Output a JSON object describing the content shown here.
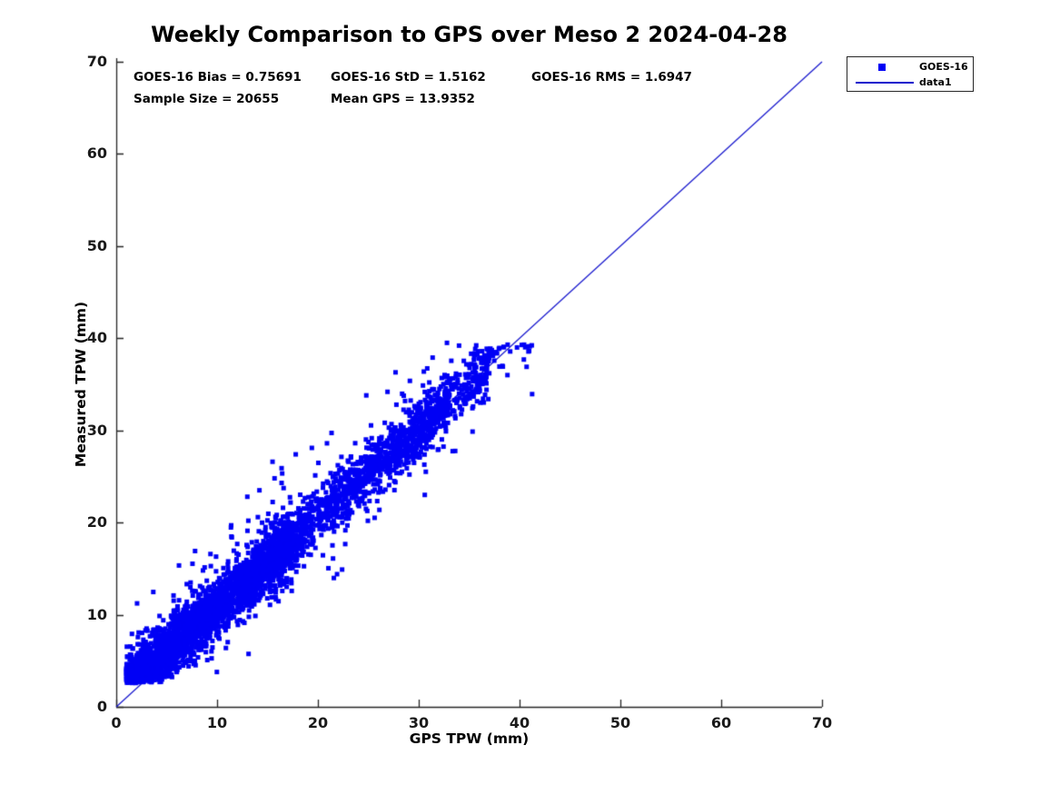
{
  "title": "Weekly Comparison to GPS over Meso 2 2024-04-28",
  "annotations": {
    "bias": "GOES-16 Bias = 0.75691",
    "std": "GOES-16 StD = 1.5162",
    "rms": "GOES-16 RMS = 1.6947",
    "sample_size": "Sample Size = 20655",
    "mean_gps": "Mean GPS = 13.9352"
  },
  "legend": {
    "marker_label": "GOES-16",
    "line_label": "data1"
  },
  "colors": {
    "marker": "#0000f5",
    "line": "#1414cc",
    "axis": "#262626",
    "text": "#000000",
    "background": "#ffffff"
  },
  "chart_data": {
    "type": "scatter",
    "title": "Weekly Comparison to GPS over Meso 2 2024-04-28",
    "xlabel": "GPS TPW (mm)",
    "ylabel": "Measured TPW (mm)",
    "xlim": [
      0,
      70
    ],
    "ylim": [
      0,
      70
    ],
    "x_ticks": [
      0,
      10,
      20,
      30,
      40,
      50,
      60,
      70
    ],
    "y_ticks": [
      0,
      10,
      20,
      30,
      40,
      50,
      60,
      70
    ],
    "grid": false,
    "legend_position": "outside-top-right",
    "stats": {
      "goes16_bias": 0.75691,
      "goes16_std": 1.5162,
      "goes16_rms": 1.6947,
      "sample_size": 20655,
      "mean_gps": 13.9352
    },
    "series": [
      {
        "name": "GOES-16",
        "type": "scatter",
        "marker": "filled-square",
        "marker_size_px": 5,
        "x_range": [
          1.0,
          41.3
        ],
        "y_range": [
          2.6,
          39.6
        ]
      },
      {
        "name": "data1",
        "type": "line",
        "x": [
          0,
          70
        ],
        "y": [
          0,
          70
        ],
        "description": "1:1 identity line"
      }
    ],
    "scatter_generation": {
      "seed": 20240428,
      "n_points": 4600,
      "gps_mixture": [
        {
          "w": 0.66,
          "base": 1.0,
          "range": 16.5,
          "pow": 1.25
        },
        {
          "w": 0.27,
          "base": 15.0,
          "range": 18.0,
          "pow": 1.0
        },
        {
          "w": 0.06,
          "base": 29.0,
          "range": 8.0,
          "pow": 1.0
        },
        {
          "w": 0.01,
          "base": 35.5,
          "range": 5.8,
          "pow": 1.3
        }
      ],
      "bias_intercept": 1.15,
      "bias_slope": -0.028,
      "noise_std": 1.5,
      "outlier_frac": 0.08,
      "outlier_std": 3.2,
      "floor_base": 2.55,
      "floor_jitter": 1.3,
      "ceil": 39.5,
      "max_resid_above": 9.5,
      "max_resid_below": 8.5
    },
    "notable_outliers": [
      [
        15.5,
        26.6
      ],
      [
        16.4,
        25.9
      ],
      [
        15.7,
        24.8
      ],
      [
        16.4,
        24.3
      ],
      [
        13.0,
        22.8
      ],
      [
        13.1,
        20.2
      ],
      [
        11.4,
        19.7
      ],
      [
        9.9,
        16.3
      ],
      [
        8.6,
        14.8
      ],
      [
        14.2,
        23.5
      ],
      [
        17.8,
        27.4
      ],
      [
        19.4,
        28.1
      ],
      [
        20.9,
        28.6
      ],
      [
        24.8,
        33.8
      ],
      [
        27.7,
        36.3
      ],
      [
        21.9,
        14.4
      ],
      [
        22.4,
        14.9
      ],
      [
        21.5,
        16.1
      ],
      [
        30.6,
        23.0
      ],
      [
        32.8,
        39.5
      ],
      [
        34.0,
        39.2
      ],
      [
        38.3,
        37.0
      ],
      [
        40.7,
        36.9
      ],
      [
        38.8,
        36.0
      ],
      [
        36.9,
        33.4
      ]
    ]
  }
}
